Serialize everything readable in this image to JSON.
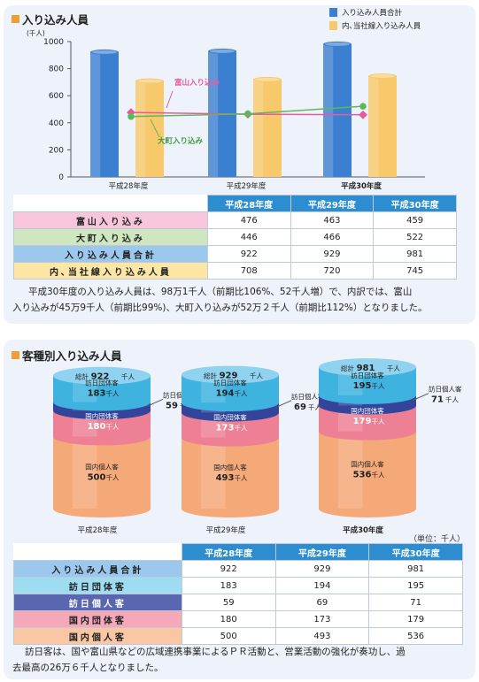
{
  "section1": {
    "title": "入り込み人員",
    "table_headers": [
      "平成28年度",
      "平成29年度",
      "平成30年度"
    ],
    "rows": [
      {
        "label": "富山入り込み",
        "values": [
          "476",
          "463",
          "459"
        ],
        "color": "#f7c6dc"
      },
      {
        "label": "大町入り込み",
        "values": [
          "446",
          "466",
          "522"
        ],
        "color": "#cfe7c0"
      },
      {
        "label": "入り込み人員合計",
        "values": [
          "922",
          "929",
          "981"
        ],
        "color": "#9cc8ee"
      },
      {
        "label": "内､当社線入り込み人員",
        "values": [
          "708",
          "720",
          "745"
        ],
        "color": "#fbe6a6"
      }
    ],
    "paragraph_lines": [
      "平成30年度の入り込み人員は、98万1千人（前期比106%、52千人増）で、内訳では、富山",
      "入り込みが45万9千人（前期比99%)、大町入り込みが52万２千人（前期比112%）となりました。"
    ]
  },
  "chart_data": [
    {
      "type": "bar",
      "ylabel": "(千人)",
      "ylim": [
        0,
        1000
      ],
      "yticks": [
        "0",
        "200",
        "400",
        "600",
        "800",
        "1000"
      ],
      "categories": [
        "平成28年度",
        "平成29年度",
        "平成30年度"
      ],
      "series": [
        {
          "name": "入り込み人員合計",
          "values": [
            922,
            929,
            981
          ],
          "color": "#3b7fd0"
        },
        {
          "name": "内､当社線入り込み人員",
          "values": [
            708,
            720,
            745
          ],
          "color": "#f7c96a"
        }
      ],
      "lines": [
        {
          "name": "富山入り込み",
          "values": [
            476,
            463,
            459
          ],
          "color": "#e85a9c"
        },
        {
          "name": "大町入り込み",
          "values": [
            446,
            466,
            522
          ],
          "color": "#5cb85c"
        }
      ],
      "legend_position": "top-right",
      "grid": false
    },
    {
      "type": "bar",
      "stacked": true,
      "categories": [
        "平成28年度",
        "平成29年度",
        "平成30年度"
      ],
      "totals": [
        922,
        929,
        981
      ],
      "total_label": "総計",
      "unit": "千人",
      "series": [
        {
          "name": "国内個人客",
          "values": [
            500,
            493,
            536
          ],
          "color": "#f5a878"
        },
        {
          "name": "国内団体客",
          "values": [
            180,
            173,
            179
          ],
          "color": "#ee8096"
        },
        {
          "name": "訪日個人客",
          "values": [
            59,
            69,
            71
          ],
          "color": "#34449a"
        },
        {
          "name": "訪日団体客",
          "values": [
            183,
            194,
            195
          ],
          "color": "#3fb3e0"
        }
      ]
    }
  ],
  "section2": {
    "title": "客種別入り込み人員",
    "unit_note": "（単位：千人）",
    "table_headers": [
      "平成28年度",
      "平成29年度",
      "平成30年度"
    ],
    "rows": [
      {
        "label": "入り込み人員合計",
        "values": [
          "922",
          "929",
          "981"
        ],
        "color": "#9cc8ee"
      },
      {
        "label": "訪日団体客",
        "values": [
          "183",
          "194",
          "195"
        ],
        "color": "#9edcf2"
      },
      {
        "label": "訪日個人客",
        "values": [
          "59",
          "69",
          "71"
        ],
        "color": "#5a66b0"
      },
      {
        "label": "国内団体客",
        "values": [
          "180",
          "173",
          "179"
        ],
        "color": "#f5a9b8"
      },
      {
        "label": "国内個人客",
        "values": [
          "500",
          "493",
          "536"
        ],
        "color": "#f9c7a4"
      }
    ],
    "paragraph_lines": [
      "訪日客は、国や富山県などの広域連携事業によるＰＲ活動と、営業活動の強化が奏功し、過",
      "去最高の26万６千人となりました。"
    ]
  }
}
